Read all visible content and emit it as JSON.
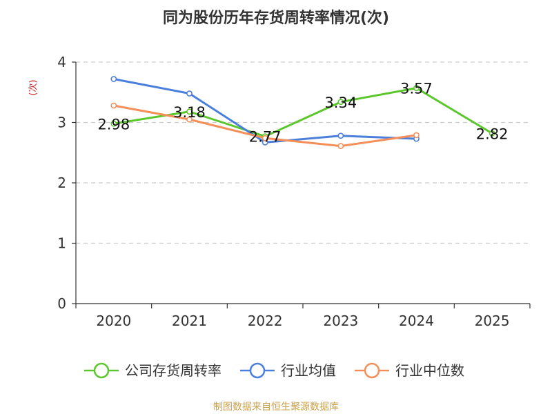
{
  "chart_data": {
    "type": "line",
    "title": "同为股份历年存货周转率情况(次)",
    "ylabel": "(次)",
    "ylim": [
      0,
      4
    ],
    "yticks": [
      0,
      1,
      2,
      3,
      4
    ],
    "categories": [
      "2020",
      "2021",
      "2022",
      "2023",
      "2024",
      "2025"
    ],
    "grid": true,
    "legend_position": "bottom",
    "series": [
      {
        "name": "公司存货周转率",
        "color": "#5cc72c",
        "values": [
          2.98,
          3.18,
          2.77,
          3.34,
          3.57,
          2.82
        ],
        "labels": [
          "2.98",
          "3.18",
          "2.77",
          "3.34",
          "3.57",
          "2.82"
        ]
      },
      {
        "name": "行业均值",
        "color": "#4a7fdc",
        "values": [
          3.72,
          3.48,
          2.67,
          2.78,
          2.73,
          null
        ]
      },
      {
        "name": "行业中位数",
        "color": "#f58f5a",
        "values": [
          3.28,
          3.05,
          2.74,
          2.61,
          2.79,
          null
        ]
      }
    ]
  },
  "colors": {
    "ylabel": "#d62222",
    "source": "#c8a24c",
    "axis": "#333333",
    "grid": "#cccccc"
  },
  "source_text": "制图数据来自恒生聚源数据库"
}
